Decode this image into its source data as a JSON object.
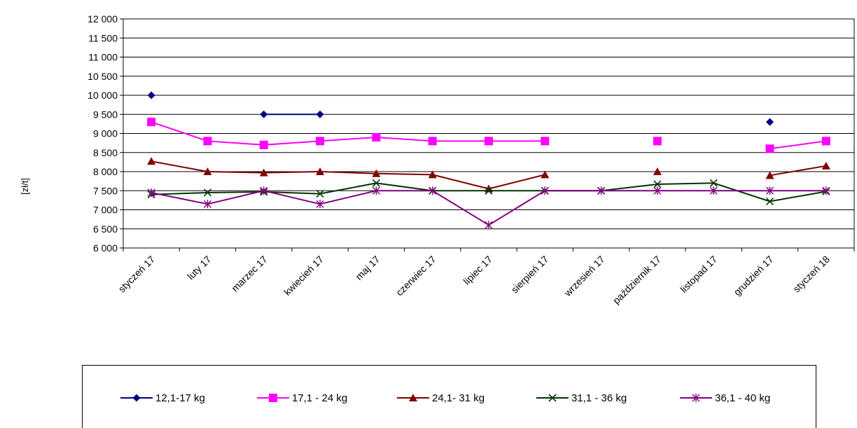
{
  "chart_data": {
    "type": "line",
    "ylabel": "[zł/t]",
    "xlabel": "",
    "ylim": [
      6000,
      12000
    ],
    "ytick_step": 500,
    "ytick_labels": [
      "6 000",
      "6 500",
      "7 000",
      "7 500",
      "8 000",
      "8 500",
      "9 000",
      "9 500",
      "10 000",
      "10 500",
      "11 000",
      "11 500",
      "12 000"
    ],
    "categories": [
      "styczeń 17",
      "luty 17",
      "marzec 17",
      "kwiecień 17",
      "maj 17",
      "czerwiec 17",
      "lipiec 17",
      "sierpień 17",
      "wrzesień 17",
      "październik 17",
      "listopad 17",
      "grudzień 17",
      "styczeń 18"
    ],
    "grid": "horizontal",
    "legend_position": "bottom",
    "series": [
      {
        "name": "12,1-17 kg",
        "color": "#000080",
        "marker": "diamond",
        "values": [
          10000,
          null,
          9500,
          9500,
          null,
          null,
          null,
          null,
          null,
          null,
          null,
          9300,
          null
        ]
      },
      {
        "name": "17,1 - 24 kg",
        "color": "#FF00FF",
        "marker": "square",
        "values": [
          9300,
          8800,
          8700,
          8800,
          8900,
          8800,
          8800,
          8800,
          null,
          8800,
          null,
          8600,
          8800
        ]
      },
      {
        "name": "24,1- 31 kg",
        "color": "#800000",
        "marker": "triangle",
        "values": [
          8270,
          8000,
          7970,
          8000,
          7950,
          7920,
          7550,
          7920,
          null,
          8000,
          null,
          7900,
          8150
        ]
      },
      {
        "name": "31,1 - 36 kg",
        "color": "#003300",
        "marker": "x",
        "values": [
          7400,
          7450,
          7470,
          7420,
          7700,
          7500,
          7500,
          7500,
          7500,
          7670,
          7700,
          7220,
          7480
        ]
      },
      {
        "name": "36,1 - 40 kg",
        "color": "#800080",
        "marker": "star",
        "values": [
          7450,
          7150,
          7500,
          7150,
          7500,
          7500,
          6600,
          7500,
          7500,
          7500,
          7500,
          7500,
          7500
        ]
      }
    ]
  }
}
